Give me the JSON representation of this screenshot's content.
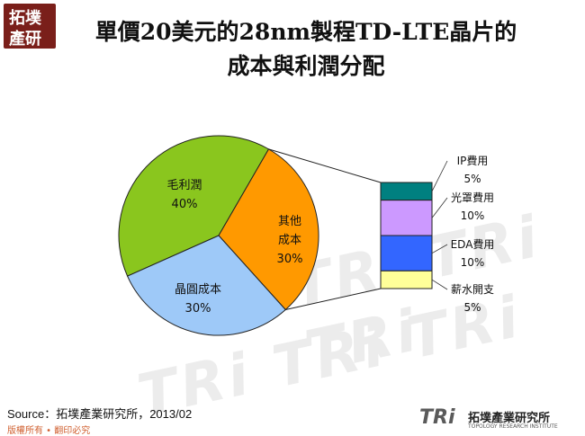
{
  "logo": {
    "line1": "拓墣",
    "line2": "產研"
  },
  "title": {
    "line1": "單價20美元的28nm製程TD-LTE晶片的",
    "line2": "成本與利潤分配"
  },
  "watermark": "TRi TRi TRi",
  "chart_data": {
    "type": "pie",
    "slices": [
      {
        "label": "毛利潤",
        "value": 40,
        "value_label": "40%",
        "color": "#8ac61e"
      },
      {
        "label_lines": [
          "其他",
          "成本"
        ],
        "value": 30,
        "value_label": "30%",
        "color": "#ff9900"
      },
      {
        "label": "晶圓成本",
        "value": 30,
        "value_label": "30%",
        "color": "#9ec9f8"
      }
    ],
    "breakdown": {
      "of": "其他成本",
      "items": [
        {
          "label": "IP費用",
          "value": 5,
          "value_label": "5%",
          "color": "#008080"
        },
        {
          "label": "光罩費用",
          "value": 10,
          "value_label": "10%",
          "color": "#cc99ff"
        },
        {
          "label": "EDA費用",
          "value": 10,
          "value_label": "10%",
          "color": "#3366ff"
        },
        {
          "label": "薪水開支",
          "value": 5,
          "value_label": "5%",
          "color": "#ffff99"
        }
      ]
    }
  },
  "source": "Source：拓墣產業研究所，2013/02",
  "footer": {
    "rights": "版權所有 • 翻印必究",
    "brand_tri": "TRi",
    "brand_cn": "拓墣產業研究所",
    "brand_en": "TOPOLOGY RESEARCH INSTITUTE"
  }
}
